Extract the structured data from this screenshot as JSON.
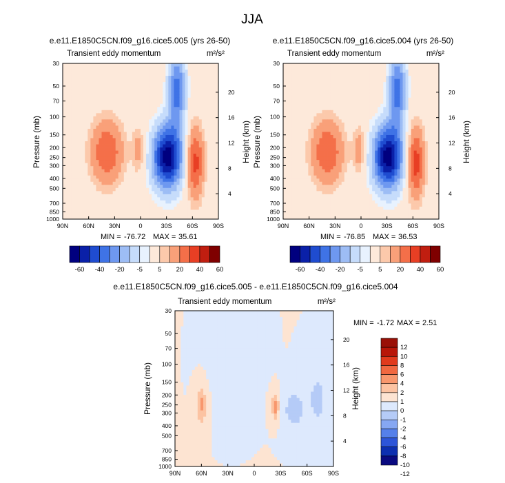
{
  "figure": {
    "title": "JJA"
  },
  "colors": {
    "cb1": [
      "#00007f",
      "#0a20a8",
      "#1f4cd0",
      "#3f73e6",
      "#6e98f0",
      "#9dbdf5",
      "#c6dcfb",
      "#e8f2fe",
      "#fde9da",
      "#fcc9ab",
      "#f9a079",
      "#f46f49",
      "#e83f24",
      "#c01e10",
      "#7f0000"
    ],
    "cb2": [
      "#0a0a80",
      "#0d2fb0",
      "#2d55d8",
      "#5580ea",
      "#86a7f2",
      "#b5cbf7",
      "#dde9fd",
      "#fde4d2",
      "#fcc3a2",
      "#f8976d",
      "#f16840",
      "#e13a1c",
      "#b81608",
      "#9a1007"
    ]
  },
  "chart_data": [
    {
      "type": "contour",
      "title": "e.e11.E1850C5CN.f09_g16.cice5.005 (yrs 26-50)",
      "subtitle_left": "Transient eddy momentum",
      "subtitle_right": "m²/s²",
      "xlabel": "",
      "ylabel": "Pressure (mb)",
      "ylabel_right": "Height (km)",
      "x_ticks": [
        "90N",
        "60N",
        "30N",
        "0",
        "30S",
        "60S",
        "90S"
      ],
      "y_ticks": [
        "30",
        "50",
        "70",
        "100",
        "150",
        "200",
        "250",
        "300",
        "400",
        "500",
        "700",
        "850",
        "1000"
      ],
      "y_right_ticks": [
        "20",
        "16",
        "12",
        "8",
        "4"
      ],
      "min_max": {
        "min_label": "MIN =",
        "min": "-76.72",
        "max_label": "MAX =",
        "max": "35.61"
      },
      "colorbar": {
        "orientation": "horizontal",
        "levels": [
          "-60",
          "-40",
          "-20",
          "-5",
          "5",
          "20",
          "40",
          "60"
        ]
      },
      "features": [
        {
          "lat": 39,
          "p": 220,
          "v": 30,
          "slat": 13,
          "sp": 0.5
        },
        {
          "lat": 2,
          "p": 210,
          "v": 15,
          "slat": 5,
          "sp": 0.35
        },
        {
          "lat": -63,
          "p": 280,
          "v": 35,
          "slat": 7,
          "sp": 0.55
        },
        {
          "lat": -31,
          "p": 250,
          "v": -77,
          "slat": 12,
          "sp": 0.5
        },
        {
          "lat": -42,
          "p": 55,
          "v": -45,
          "slat": 7,
          "sp": 0.6
        }
      ]
    },
    {
      "type": "contour",
      "title": "e.e11.E1850C5CN.f09_g16.cice5.004 (yrs 26-50)",
      "subtitle_left": "Transient eddy momentum",
      "subtitle_right": "m²/s²",
      "xlabel": "",
      "ylabel": "Pressure (mb)",
      "ylabel_right": "Height (km)",
      "x_ticks": [
        "90N",
        "60N",
        "30N",
        "0",
        "30S",
        "60S",
        "90S"
      ],
      "y_ticks": [
        "30",
        "50",
        "70",
        "100",
        "150",
        "200",
        "250",
        "300",
        "400",
        "500",
        "700",
        "850",
        "1000"
      ],
      "y_right_ticks": [
        "20",
        "16",
        "12",
        "8",
        "4"
      ],
      "min_max": {
        "min_label": "MIN =",
        "min": "-76.85",
        "max_label": "MAX =",
        "max": "36.53"
      },
      "colorbar": {
        "orientation": "horizontal",
        "levels": [
          "-60",
          "-40",
          "-20",
          "-5",
          "5",
          "20",
          "40",
          "60"
        ]
      },
      "features": [
        {
          "lat": 39,
          "p": 220,
          "v": 30,
          "slat": 13,
          "sp": 0.5
        },
        {
          "lat": 2,
          "p": 210,
          "v": 16,
          "slat": 5,
          "sp": 0.35
        },
        {
          "lat": -63,
          "p": 280,
          "v": 36,
          "slat": 7,
          "sp": 0.55
        },
        {
          "lat": -31,
          "p": 250,
          "v": -77,
          "slat": 12,
          "sp": 0.5
        },
        {
          "lat": -42,
          "p": 55,
          "v": -45,
          "slat": 7,
          "sp": 0.6
        }
      ]
    },
    {
      "type": "contour",
      "title": "e.e11.E1850C5CN.f09_g16.cice5.005 - e.e11.E1850C5CN.f09_g16.cice5.004",
      "subtitle_left": "Transient eddy momentum",
      "subtitle_right": "m²/s²",
      "xlabel": "",
      "ylabel": "Pressure (mb)",
      "ylabel_right": "Height (km)",
      "x_ticks": [
        "90N",
        "60N",
        "30N",
        "0",
        "30S",
        "60S",
        "90S"
      ],
      "y_ticks": [
        "30",
        "50",
        "70",
        "100",
        "150",
        "200",
        "250",
        "300",
        "400",
        "500",
        "700",
        "850",
        "1000"
      ],
      "y_right_ticks": [
        "20",
        "16",
        "12",
        "8",
        "4"
      ],
      "min_max": {
        "min_label": "MIN =",
        "min": "-1.72",
        "max_label": "MAX =",
        "max": "2.51"
      },
      "colorbar": {
        "orientation": "vertical",
        "levels": [
          "12",
          "10",
          "8",
          "6",
          "4",
          "2",
          "1",
          "0",
          "-1",
          "-2",
          "-4",
          "-6",
          "-8",
          "-10",
          "-12"
        ]
      },
      "features": [
        {
          "lat": 60,
          "p": 250,
          "v": 2.2,
          "slat": 4,
          "sp": 0.3
        },
        {
          "lat": -24,
          "p": 260,
          "v": 2.5,
          "slat": 3,
          "sp": 0.2
        },
        {
          "lat": -45,
          "p": 280,
          "v": -1.7,
          "slat": 8,
          "sp": 0.3
        },
        {
          "lat": -72,
          "p": 220,
          "v": -1.3,
          "slat": 9,
          "sp": 0.5
        },
        {
          "lat": 25,
          "p": 80,
          "v": -0.7,
          "slat": 14,
          "sp": 0.6
        }
      ]
    }
  ]
}
